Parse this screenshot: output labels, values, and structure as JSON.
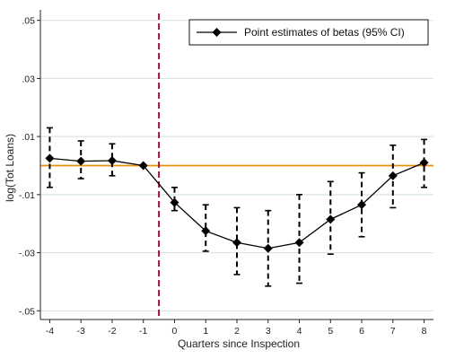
{
  "chart_data": {
    "type": "line",
    "xlabel": "Quarters since Inspection",
    "ylabel": "log(Tot Loans)",
    "x_ticks": [
      "-4",
      "-3",
      "-2",
      "-1",
      "0",
      "1",
      "2",
      "3",
      "4",
      "5",
      "6",
      "7",
      "8"
    ],
    "y_ticks": [
      ".05",
      ".03",
      ".01",
      "-.01",
      "-.03",
      "-.05"
    ],
    "ylim": [
      -0.053,
      0.053
    ],
    "xlim": [
      -4.3,
      8.3
    ],
    "grid": "horizontal",
    "legend": "top-right",
    "series": [
      {
        "name": "Point estimates of betas (95% CI)",
        "x": [
          -4,
          -3,
          -2,
          -1,
          0,
          1,
          2,
          3,
          4,
          5,
          6,
          7,
          8
        ],
        "y": [
          0.0025,
          0.0015,
          0.0017,
          0.0,
          -0.0127,
          -0.0225,
          -0.0265,
          -0.0285,
          -0.0265,
          -0.0185,
          -0.0135,
          -0.0035,
          0.001
        ],
        "ci_low": [
          -0.0075,
          -0.0045,
          -0.0035,
          0.0,
          -0.0155,
          -0.0295,
          -0.0375,
          -0.0415,
          -0.0405,
          -0.0305,
          -0.0245,
          -0.0145,
          -0.0075
        ],
        "ci_high": [
          0.013,
          0.0085,
          0.0075,
          0.0,
          -0.0075,
          -0.0135,
          -0.0145,
          -0.0155,
          -0.01,
          -0.0055,
          -0.0025,
          0.007,
          0.009
        ]
      }
    ],
    "reference_lines": {
      "horizontal_y": 0,
      "vertical_x": -0.5
    },
    "colors": {
      "series": "#000000",
      "zero_line": "#e8900c",
      "event_line": "#a3123a",
      "grid": "#d9e3e8"
    }
  }
}
